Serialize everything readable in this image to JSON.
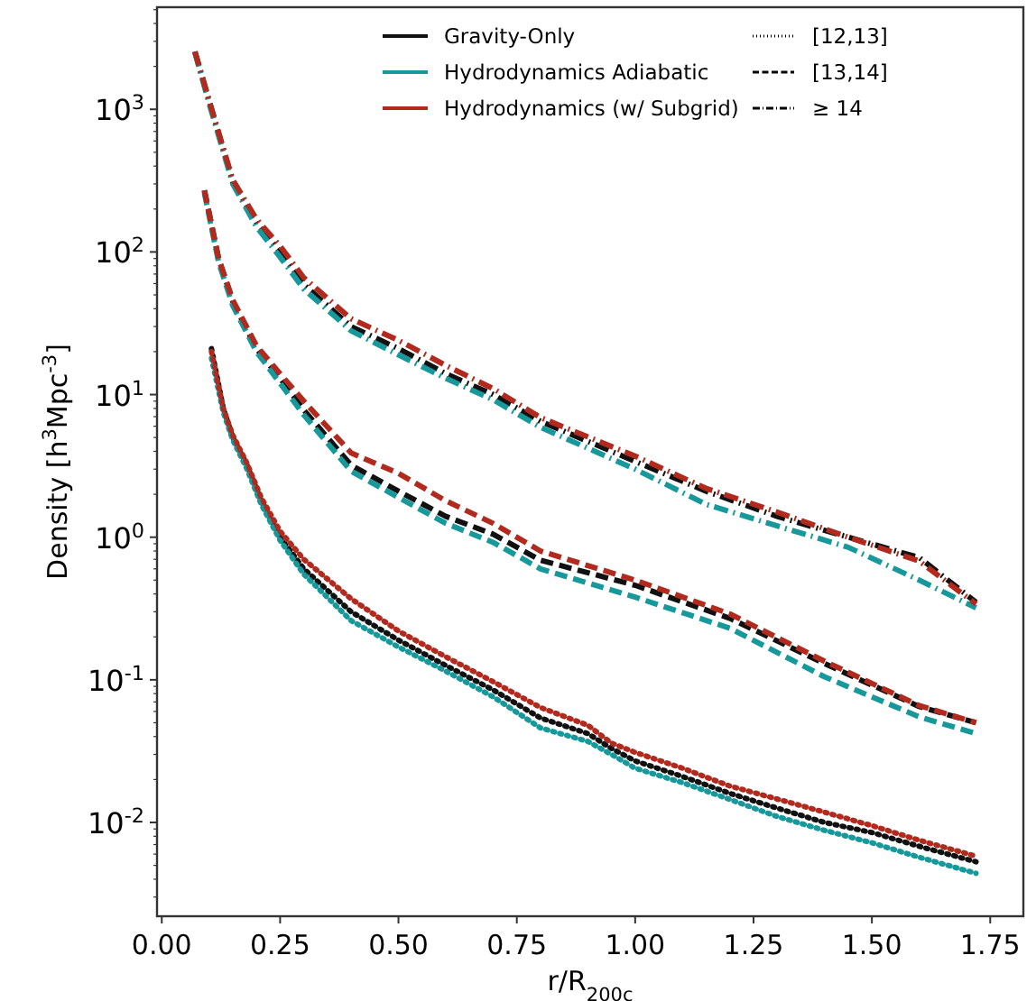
{
  "chart_data": {
    "type": "line",
    "xlabel": "r/R$_{200c}$",
    "ylabel": "Density [h$^{3}$Mpc$^{-3}$]",
    "log": "y",
    "grid": false,
    "legend": "top right",
    "xlim": [
      -0.01,
      1.82
    ],
    "ylim": [
      0.0022,
      5200
    ],
    "xticks": [
      {
        "value": 0,
        "label": "0.00"
      },
      {
        "value": 0.25,
        "label": "0.25"
      },
      {
        "value": 0.5,
        "label": "0.50"
      },
      {
        "value": 0.75,
        "label": "0.75"
      },
      {
        "value": 1,
        "label": "1.00"
      },
      {
        "value": 1.25,
        "label": "1.25"
      },
      {
        "value": 1.5,
        "label": "1.50"
      },
      {
        "value": 1.75,
        "label": "1.75"
      }
    ],
    "yticks": [
      {
        "value": 0.01,
        "label": "10$^{-2}$"
      },
      {
        "value": 0.1,
        "label": "10$^{-1}$"
      },
      {
        "value": 1,
        "label": "10$^{0}$"
      },
      {
        "value": 10,
        "label": "10$^{1}$"
      },
      {
        "value": 100,
        "label": "10$^{2}$"
      },
      {
        "value": 1000,
        "label": "10$^{3}$"
      }
    ],
    "annotations": [
      "[12,13]",
      "[13,14]",
      "≥ 14"
    ],
    "series": [
      {
        "name": "Gravity-Only",
        "color": "#111111",
        "line_style": "dotted",
        "x": [
          0.105,
          0.13,
          0.15,
          0.18,
          0.21,
          0.25,
          0.3,
          0.4,
          0.5,
          0.6,
          0.7,
          0.8,
          0.9,
          0.95,
          1.0,
          1.1,
          1.2,
          1.3,
          1.4,
          1.5,
          1.6,
          1.72
        ],
        "values": [
          21,
          8,
          5,
          3.2,
          1.8,
          1.0,
          0.6,
          0.3,
          0.19,
          0.126,
          0.085,
          0.054,
          0.042,
          0.033,
          0.027,
          0.021,
          0.016,
          0.0126,
          0.01,
          0.0085,
          0.0068,
          0.0053
        ]
      },
      {
        "name": "Hydrodynamics Adiabatic",
        "color": "#17999b",
        "line_style": "dotted",
        "x": [
          0.105,
          0.13,
          0.15,
          0.18,
          0.21,
          0.25,
          0.3,
          0.4,
          0.5,
          0.6,
          0.7,
          0.8,
          0.9,
          0.95,
          1.0,
          1.1,
          1.2,
          1.3,
          1.4,
          1.5,
          1.6,
          1.72
        ],
        "values": [
          18,
          7.5,
          4.8,
          3.0,
          1.7,
          0.95,
          0.55,
          0.26,
          0.17,
          0.115,
          0.076,
          0.046,
          0.037,
          0.03,
          0.024,
          0.019,
          0.0145,
          0.011,
          0.0088,
          0.0072,
          0.0057,
          0.0044
        ]
      },
      {
        "name": "Hydrodynamics (w/ Subgrid)",
        "color": "#b22a1e",
        "line_style": "dotted",
        "x": [
          0.105,
          0.13,
          0.15,
          0.18,
          0.21,
          0.25,
          0.3,
          0.4,
          0.5,
          0.6,
          0.7,
          0.8,
          0.9,
          0.95,
          1.0,
          1.1,
          1.2,
          1.3,
          1.4,
          1.5,
          1.6,
          1.72
        ],
        "values": [
          20,
          8,
          5.2,
          3.3,
          1.9,
          1.1,
          0.7,
          0.37,
          0.22,
          0.145,
          0.097,
          0.064,
          0.048,
          0.036,
          0.031,
          0.024,
          0.018,
          0.0146,
          0.0118,
          0.0095,
          0.0075,
          0.0058
        ]
      },
      {
        "color": "#111111",
        "line_style": "dashed",
        "x": [
          0.09,
          0.12,
          0.15,
          0.2,
          0.25,
          0.3,
          0.4,
          0.5,
          0.6,
          0.7,
          0.8,
          1.0,
          1.2,
          1.4,
          1.6,
          1.72
        ],
        "values": [
          270,
          90,
          45,
          21,
          13,
          7.8,
          3.2,
          2.1,
          1.4,
          1.05,
          0.69,
          0.46,
          0.27,
          0.13,
          0.065,
          0.05
        ]
      },
      {
        "color": "#17999b",
        "line_style": "dashed",
        "x": [
          0.09,
          0.12,
          0.15,
          0.2,
          0.25,
          0.3,
          0.4,
          0.5,
          0.6,
          0.7,
          0.8,
          1.0,
          1.2,
          1.4,
          1.6,
          1.72
        ],
        "values": [
          260,
          85,
          42,
          20,
          12,
          7.2,
          2.9,
          1.9,
          1.25,
          0.92,
          0.6,
          0.38,
          0.23,
          0.105,
          0.055,
          0.042
        ]
      },
      {
        "color": "#b22a1e",
        "line_style": "dashed",
        "x": [
          0.09,
          0.12,
          0.15,
          0.2,
          0.25,
          0.3,
          0.4,
          0.5,
          0.6,
          0.7,
          0.8,
          1.0,
          1.2,
          1.4,
          1.6,
          1.72
        ],
        "values": [
          270,
          90,
          46,
          22,
          14,
          9,
          3.9,
          2.8,
          1.8,
          1.25,
          0.8,
          0.5,
          0.29,
          0.135,
          0.066,
          0.05
        ]
      },
      {
        "color": "#111111",
        "line_style": "dashdot",
        "x": [
          0.07,
          0.1,
          0.15,
          0.2,
          0.25,
          0.3,
          0.4,
          0.5,
          0.6,
          0.7,
          0.8,
          1.0,
          1.15,
          1.3,
          1.45,
          1.6,
          1.72
        ],
        "values": [
          2540,
          1150,
          310,
          160,
          100,
          59,
          30,
          21,
          14,
          10,
          6.5,
          3.4,
          2.1,
          1.4,
          1.0,
          0.72,
          0.35
        ]
      },
      {
        "color": "#17999b",
        "line_style": "dashdot",
        "x": [
          0.07,
          0.1,
          0.15,
          0.2,
          0.25,
          0.3,
          0.4,
          0.5,
          0.6,
          0.7,
          0.8,
          1.0,
          1.15,
          1.3,
          1.45,
          1.6,
          1.72
        ],
        "values": [
          2500,
          1100,
          300,
          150,
          92,
          55,
          28,
          19,
          13,
          9.2,
          5.9,
          3.0,
          1.7,
          1.2,
          0.85,
          0.5,
          0.32
        ]
      },
      {
        "color": "#b22a1e",
        "line_style": "dashdot",
        "x": [
          0.07,
          0.1,
          0.15,
          0.2,
          0.25,
          0.3,
          0.4,
          0.5,
          0.6,
          0.7,
          0.8,
          1.0,
          1.15,
          1.3,
          1.45,
          1.6,
          1.72
        ],
        "values": [
          2540,
          1150,
          320,
          170,
          110,
          66,
          34,
          24,
          16,
          11,
          6.9,
          3.7,
          2.2,
          1.5,
          1.0,
          0.68,
          0.34
        ]
      }
    ]
  }
}
